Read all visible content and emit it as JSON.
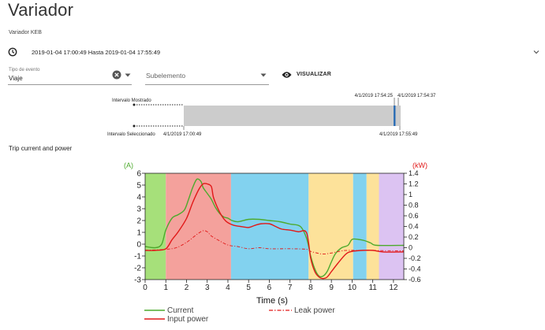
{
  "page": {
    "title": "Variador",
    "subtitle": "Variador KEB",
    "date_range": "2019-01-04 17:00:49 Hasta 2019-01-04 17:55:49"
  },
  "filters": {
    "event_type_label": "Tipo de evento",
    "event_type_value": "Viaje",
    "subevent_placeholder": "Subelemento",
    "visualize_label": "VISUALIZAR"
  },
  "icons": [
    "clock-icon",
    "chevron-down-icon",
    "clear-icon",
    "dropdown-arrow-icon",
    "eye-icon"
  ],
  "timeline": {
    "shown_label": "Intervalo Mostrado",
    "selected_label": "Intervalo Seleccionado",
    "selected_start": "4/1/2019 17:00:49",
    "selected_end": "4/1/2019 17:55:49",
    "shown_start": "4/1/2019 17:54:25",
    "shown_end": "4/1/2019 17:54:37",
    "colors": {
      "bar": "#cccccc",
      "marker": "#2f6fb5"
    }
  },
  "chart_title": "Trip current and power",
  "chart_data": {
    "type": "line",
    "xlabel": "Time (s)",
    "ylabel_left": "(A)",
    "ylabel_right": "(kW)",
    "xlim": [
      0,
      12.5
    ],
    "ylim_left": [
      -3,
      6
    ],
    "ylim_right": [
      -0.6,
      1.4
    ],
    "xticks": [
      0,
      1,
      2,
      3,
      4,
      5,
      6,
      7,
      8,
      9,
      10,
      11,
      12
    ],
    "yticks_left": [
      -3,
      -2,
      -1,
      0,
      1,
      2,
      3,
      4,
      5,
      6
    ],
    "yticks_right": [
      "-0.6",
      "-0.4",
      "-0.2",
      "0",
      "0.2",
      "0.4",
      "0.6",
      "0.8",
      "1",
      "1.2",
      "1.4"
    ],
    "background_bands": [
      {
        "from": 0.0,
        "to": 1.0,
        "color": "#a6e07a"
      },
      {
        "from": 1.0,
        "to": 4.15,
        "color": "#f4a19c"
      },
      {
        "from": 4.15,
        "to": 7.9,
        "color": "#82d2ef"
      },
      {
        "from": 7.9,
        "to": 10.05,
        "color": "#fde29a"
      },
      {
        "from": 10.05,
        "to": 10.7,
        "color": "#82d2ef"
      },
      {
        "from": 10.7,
        "to": 11.3,
        "color": "#fde29a"
      },
      {
        "from": 11.3,
        "to": 12.5,
        "color": "#dcc3f2"
      }
    ],
    "series": [
      {
        "name": "Current",
        "axis": "left",
        "color": "#4daa2d",
        "style": "solid",
        "x": [
          0,
          0.5,
          0.8,
          1.0,
          1.3,
          1.6,
          1.9,
          2.1,
          2.3,
          2.5,
          2.7,
          2.8,
          3.0,
          3.2,
          3.4,
          3.6,
          3.8,
          4.0,
          4.2,
          4.5,
          5.0,
          5.5,
          6.0,
          6.5,
          7.0,
          7.5,
          7.8,
          8.0,
          8.2,
          8.4,
          8.6,
          8.8,
          9.0,
          9.2,
          9.5,
          9.8,
          10.0,
          10.3,
          10.6,
          10.9,
          11.2,
          12.5
        ],
        "y": [
          -0.2,
          -0.3,
          0.0,
          1.2,
          2.2,
          2.5,
          2.9,
          3.8,
          4.8,
          5.5,
          5.3,
          4.8,
          4.3,
          3.8,
          3.1,
          2.6,
          2.3,
          2.2,
          2.0,
          1.9,
          2.1,
          2.1,
          2.0,
          1.9,
          1.7,
          1.5,
          0.5,
          -1.0,
          -2.1,
          -2.7,
          -2.7,
          -2.3,
          -1.5,
          -0.8,
          -0.3,
          -0.1,
          0.4,
          0.4,
          0.3,
          0.1,
          -0.1,
          -0.1
        ]
      },
      {
        "name": "Input power",
        "axis": "right",
        "color": "#e11818",
        "style": "solid",
        "x": [
          0,
          0.5,
          1.0,
          1.3,
          1.6,
          2.0,
          2.3,
          2.6,
          2.8,
          3.0,
          3.2,
          3.3,
          3.5,
          3.7,
          3.9,
          4.1,
          4.3,
          4.6,
          5.0,
          5.3,
          5.6,
          6.0,
          6.3,
          6.6,
          7.0,
          7.4,
          7.8,
          8.0,
          8.2,
          8.4,
          8.6,
          8.8,
          9.0,
          9.3,
          9.7,
          10.0,
          10.5,
          11.0,
          11.5,
          12.5
        ],
        "y": [
          -0.05,
          -0.05,
          -0.02,
          0.15,
          0.3,
          0.55,
          0.85,
          1.1,
          1.2,
          1.2,
          1.15,
          0.95,
          0.75,
          0.6,
          0.5,
          0.45,
          0.42,
          0.4,
          0.38,
          0.42,
          0.45,
          0.45,
          0.4,
          0.35,
          0.33,
          0.3,
          0.28,
          -0.2,
          -0.45,
          -0.55,
          -0.58,
          -0.55,
          -0.45,
          -0.3,
          -0.12,
          -0.07,
          -0.05,
          -0.05,
          -0.08,
          -0.08
        ]
      },
      {
        "name": "Leak power",
        "axis": "right",
        "color": "#e11818",
        "style": "dashdot",
        "x": [
          0,
          1.0,
          1.5,
          2.0,
          2.5,
          2.8,
          3.0,
          3.2,
          3.5,
          4.0,
          4.5,
          5.0,
          5.5,
          6.0,
          7.0,
          7.8,
          8.0,
          8.3,
          8.6,
          9.0,
          9.5,
          10.0,
          12.5
        ],
        "y": [
          -0.05,
          -0.03,
          0.0,
          0.1,
          0.25,
          0.32,
          0.3,
          0.22,
          0.15,
          0.05,
          0.02,
          -0.02,
          0.0,
          -0.02,
          -0.02,
          -0.03,
          -0.07,
          -0.1,
          -0.12,
          -0.1,
          -0.06,
          -0.05,
          -0.06
        ]
      }
    ]
  }
}
